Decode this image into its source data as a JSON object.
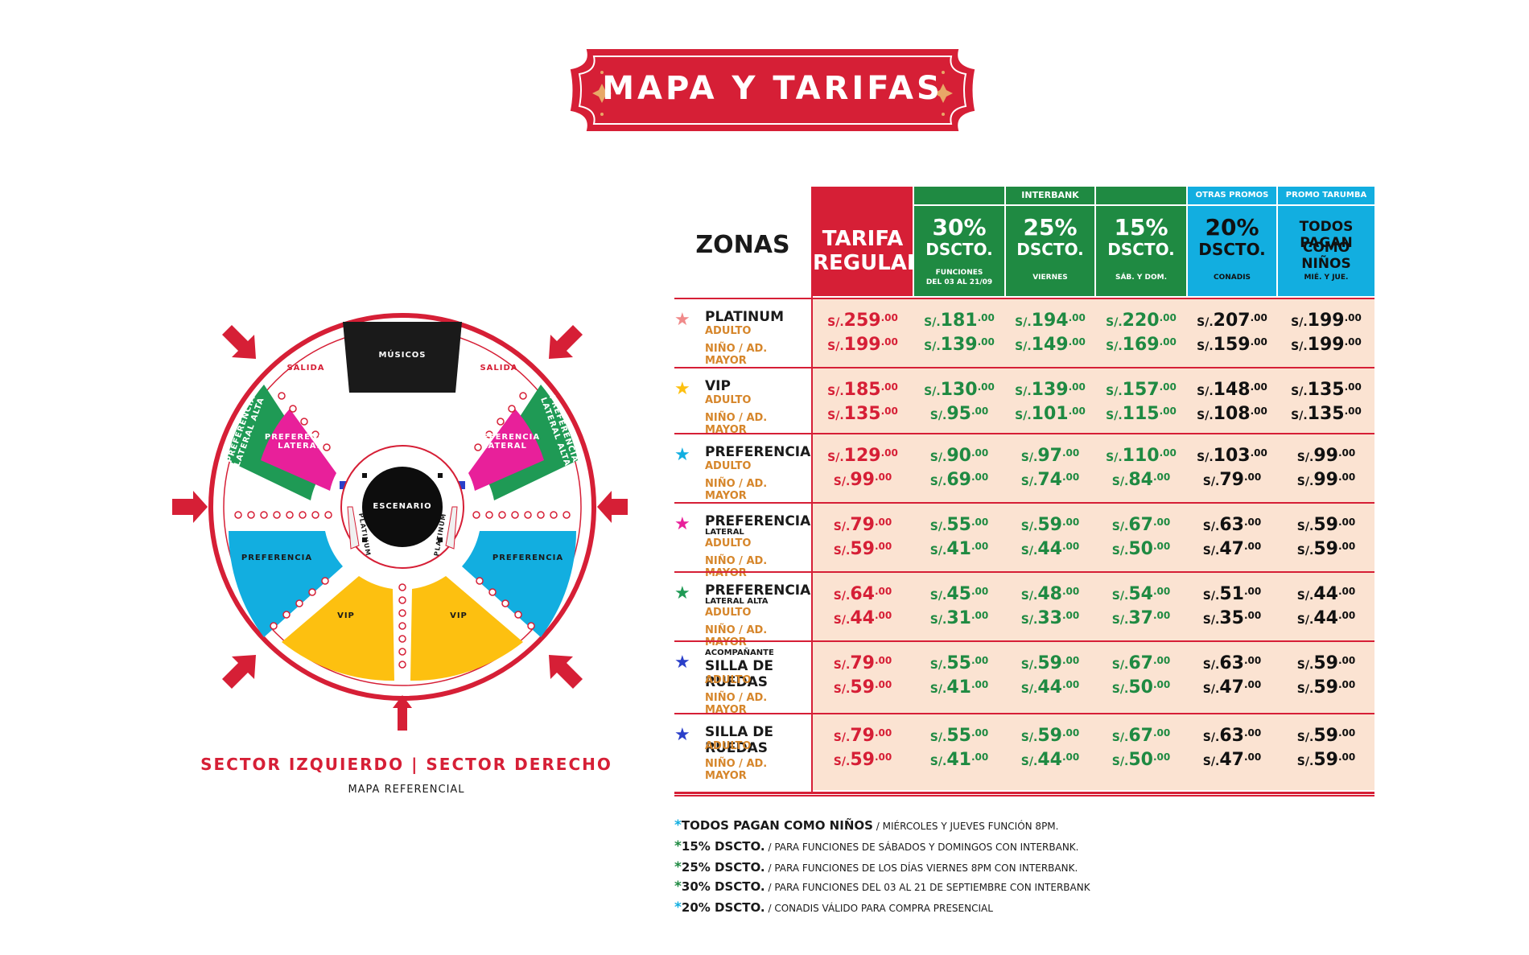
{
  "banner": {
    "title": "MAPA Y TARIFAS"
  },
  "map": {
    "musicians": "MÚSICOS",
    "exit_left": "SALIDA",
    "exit_right": "SALIDA",
    "stage": "ESCENARIO",
    "pref_lateral_alta": "PREFERENCIA LATERAL ALTA",
    "pref_lateral": "PREFERENCIA LATERAL",
    "preferencia": "PREFERENCIA",
    "platinum": "PLATINUM",
    "vip": "VIP",
    "sector_label": "SECTOR IZQUIERDO | SECTOR DERECHO",
    "reference": "MAPA REFERENCIAL",
    "colors": {
      "platinum": "#f0f0f0",
      "vip": "#fdc010",
      "preferencia": "#12aee0",
      "pref_lateral": "#e8209a",
      "pref_lateral_alta": "#1f9a55",
      "accent": "#d61f36"
    }
  },
  "table": {
    "zonas_header": "ZONAS",
    "groups": {
      "interbank": "INTERBANK",
      "otras_promos": "OTRAS PROMOS",
      "promo_tarumba": "PROMO TARUMBA"
    },
    "columns": [
      {
        "main": "TARIFA",
        "main2": "REGULAR",
        "sub": ""
      },
      {
        "main": "30%",
        "main2": "DSCTO.",
        "sub": "FUNCIONES",
        "sub2": "DEL 03 AL 21/09"
      },
      {
        "main": "25%",
        "main2": "DSCTO.",
        "sub": "VIERNES",
        "sub2": ""
      },
      {
        "main": "15%",
        "main2": "DSCTO.",
        "sub": "SÁB. Y DOM.",
        "sub2": ""
      },
      {
        "main": "20%",
        "main2": "DSCTO.",
        "sub": "CONADIS",
        "sub2": ""
      },
      {
        "main": "TODOS PAGAN",
        "main2": "COMO NIÑOS",
        "sub": "MIÉ. Y JUE.",
        "sub2": ""
      }
    ],
    "currency": "S/.",
    "decimals": ".00",
    "rows": [
      {
        "star_color": "#f08a8a",
        "sub": "",
        "name": "PLATINUM",
        "adult": "ADULTO",
        "child": "NIÑO / AD. MAYOR",
        "prices": [
          [
            "259",
            "199"
          ],
          [
            "181",
            "139"
          ],
          [
            "194",
            "149"
          ],
          [
            "220",
            "169"
          ],
          [
            "207",
            "159"
          ],
          [
            "199",
            "199"
          ]
        ]
      },
      {
        "star_color": "#fdc010",
        "sub": "",
        "name": "VIP",
        "adult": "ADULTO",
        "child": "NIÑO / AD. MAYOR",
        "prices": [
          [
            "185",
            "135"
          ],
          [
            "130",
            "95"
          ],
          [
            "139",
            "101"
          ],
          [
            "157",
            "115"
          ],
          [
            "148",
            "108"
          ],
          [
            "135",
            "135"
          ]
        ]
      },
      {
        "star_color": "#12aee0",
        "sub": "",
        "name": "PREFERENCIA",
        "adult": "ADULTO",
        "child": "NIÑO / AD. MAYOR",
        "prices": [
          [
            "129",
            "99"
          ],
          [
            "90",
            "69"
          ],
          [
            "97",
            "74"
          ],
          [
            "110",
            "84"
          ],
          [
            "103",
            "79"
          ],
          [
            "99",
            "99"
          ]
        ]
      },
      {
        "star_color": "#e8209a",
        "sub": "LATERAL",
        "name": "PREFERENCIA",
        "adult": "ADULTO",
        "child": "NIÑO / AD. MAYOR",
        "prices": [
          [
            "79",
            "59"
          ],
          [
            "55",
            "41"
          ],
          [
            "59",
            "44"
          ],
          [
            "67",
            "50"
          ],
          [
            "63",
            "47"
          ],
          [
            "59",
            "59"
          ]
        ]
      },
      {
        "star_color": "#1f9a55",
        "sub": "LATERAL ALTA",
        "name": "PREFERENCIA",
        "adult": "ADULTO",
        "child": "NIÑO / AD. MAYOR",
        "prices": [
          [
            "64",
            "44"
          ],
          [
            "45",
            "31"
          ],
          [
            "48",
            "33"
          ],
          [
            "54",
            "37"
          ],
          [
            "51",
            "35"
          ],
          [
            "44",
            "44"
          ]
        ]
      },
      {
        "star_color": "#2a3fc9",
        "sub": "ACOMPAÑANTE",
        "name": "SILLA DE RUEDAS",
        "adult": "ADULTO",
        "child": "NIÑO / AD. MAYOR",
        "prices": [
          [
            "79",
            "59"
          ],
          [
            "55",
            "41"
          ],
          [
            "59",
            "44"
          ],
          [
            "67",
            "50"
          ],
          [
            "63",
            "47"
          ],
          [
            "59",
            "59"
          ]
        ]
      },
      {
        "star_color": "#2a3fc9",
        "sub": "",
        "name": "SILLA DE RUEDAS",
        "adult": "ADULTO",
        "child": "NIÑO / AD. MAYOR",
        "prices": [
          [
            "79",
            "59"
          ],
          [
            "55",
            "41"
          ],
          [
            "59",
            "44"
          ],
          [
            "67",
            "50"
          ],
          [
            "63",
            "47"
          ],
          [
            "59",
            "59"
          ]
        ]
      }
    ]
  },
  "notes": [
    {
      "color": "#12aee0",
      "bold": "TODOS PAGAN COMO NIÑOS",
      "rest": " / MIÉRCOLES Y JUEVES FUNCIÓN 8PM."
    },
    {
      "color": "#1f8a42",
      "bold": "15% DSCTO.",
      "rest": " / PARA FUNCIONES DE SÁBADOS Y DOMINGOS CON INTERBANK."
    },
    {
      "color": "#1f8a42",
      "bold": "25% DSCTO.",
      "rest": " / PARA FUNCIONES DE LOS DÍAS VIERNES 8PM CON INTERBANK."
    },
    {
      "color": "#1f8a42",
      "bold": "30% DSCTO.",
      "rest": " / PARA FUNCIONES DEL 03 AL 21 DE SEPTIEMBRE CON INTERBANK"
    },
    {
      "color": "#12aee0",
      "bold": "20% DSCTO.",
      "rest": " / CONADIS VÁLIDO PARA COMPRA PRESENCIAL"
    }
  ]
}
